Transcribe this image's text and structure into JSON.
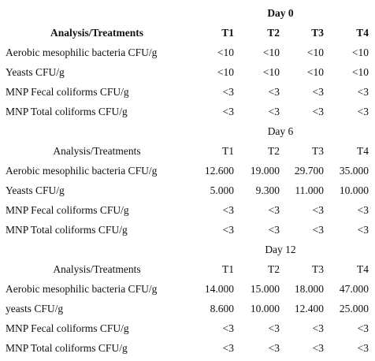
{
  "table": {
    "sections": [
      {
        "title": "Day 0",
        "header": [
          "Analysis/Treatments",
          "T1",
          "T2",
          "T3",
          "T4"
        ],
        "rows": [
          [
            "Aerobic mesophilic bacteria CFU/g",
            "<10",
            "<10",
            "<10",
            "<10"
          ],
          [
            "Yeasts CFU/g",
            "<10",
            "<10",
            "<10",
            "<10"
          ],
          [
            "MNP Fecal coliforms CFU/g",
            "<3",
            "<3",
            "<3",
            "<3"
          ],
          [
            "MNP Total coliforms CFU/g",
            "<3",
            "<3",
            "<3",
            "<3"
          ]
        ]
      },
      {
        "title": "Day 6",
        "header": [
          "Analysis/Treatments",
          "T1",
          "T2",
          "T3",
          "T4"
        ],
        "rows": [
          [
            "Aerobic mesophilic bacteria CFU/g",
            "12.600",
            "19.000",
            "29.700",
            "35.000"
          ],
          [
            "Yeasts CFU/g",
            "5.000",
            "9.300",
            "11.000",
            "10.000"
          ],
          [
            "MNP Fecal coliforms CFU/g",
            "<3",
            "<3",
            "<3",
            "<3"
          ],
          [
            "MNP Total coliforms CFU/g",
            "<3",
            "<3",
            "<3",
            "<3"
          ]
        ]
      },
      {
        "title": "Day 12",
        "header": [
          "Analysis/Treatments",
          "T1",
          "T2",
          "T3",
          "T4"
        ],
        "rows": [
          [
            "Aerobic mesophilic bacteria CFU/g",
            "14.000",
            "15.000",
            "18.000",
            "47.000"
          ],
          [
            "yeasts CFU/g",
            "8.600",
            "10.000",
            "12.400",
            "25.000"
          ],
          [
            "MNP Fecal coliforms CFU/g",
            "<3",
            "<3",
            "<3",
            "<3"
          ],
          [
            "MNP Total coliforms CFU/g",
            "<3",
            "<3",
            "<3",
            "<3"
          ]
        ]
      }
    ]
  }
}
